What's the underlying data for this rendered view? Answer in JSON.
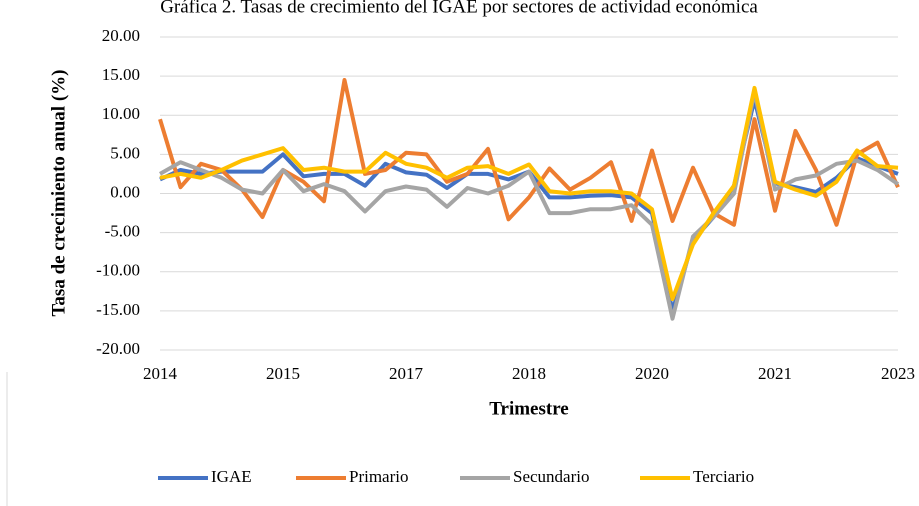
{
  "chart_data": {
    "type": "line",
    "title": "Gráfica 2. Tasas de crecimiento del IGAE por sectores de actividad económica",
    "x_label": "Trimestre",
    "y_label": "Tasa de crecimiento anual (%)",
    "categories": [
      "2014",
      null,
      null,
      null,
      null,
      null,
      "2015",
      null,
      null,
      null,
      null,
      null,
      "2017",
      null,
      null,
      null,
      null,
      null,
      "2018",
      null,
      null,
      null,
      null,
      null,
      "2020",
      null,
      null,
      null,
      null,
      null,
      "2021",
      null,
      null,
      null,
      null,
      null,
      "2023"
    ],
    "ylim": [
      -20,
      20
    ],
    "yticks": [
      {
        "value": -20,
        "label": "-20.00"
      },
      {
        "value": -15,
        "label": "-15.00"
      },
      {
        "value": -10,
        "label": "-10.00"
      },
      {
        "value": -5,
        "label": "-5.00"
      },
      {
        "value": 0,
        "label": "0.00"
      },
      {
        "value": 5,
        "label": "5.00"
      },
      {
        "value": 10,
        "label": "10.00"
      },
      {
        "value": 15,
        "label": "15.00"
      },
      {
        "value": 20,
        "label": "20.00"
      }
    ],
    "grid": true,
    "legend": "bottom",
    "series": [
      {
        "name": "IGAE",
        "color": "#4472c4",
        "values": [
          1.8,
          3.0,
          2.5,
          2.8,
          2.8,
          2.8,
          5.0,
          2.2,
          2.5,
          2.5,
          1.0,
          3.8,
          2.7,
          2.4,
          0.7,
          2.5,
          2.5,
          1.8,
          2.8,
          -0.5,
          -0.5,
          -0.3,
          -0.2,
          -0.5,
          -2.5,
          -15.0,
          -6.0,
          -3.0,
          1.0,
          12.0,
          1.3,
          0.8,
          0.2,
          2.0,
          4.5,
          3.5,
          2.5
        ]
      },
      {
        "name": "Primario",
        "color": "#ed7d31",
        "values": [
          9.5,
          0.8,
          3.8,
          3.0,
          0.5,
          -3.0,
          3.0,
          1.5,
          -1.0,
          14.5,
          2.5,
          3.0,
          5.2,
          5.0,
          1.5,
          2.5,
          5.7,
          -3.3,
          -0.5,
          3.2,
          0.5,
          2.0,
          4.0,
          -3.5,
          5.5,
          -3.5,
          3.3,
          -2.5,
          -4.0,
          9.5,
          -2.2,
          8.0,
          3.0,
          -4.0,
          5.0,
          6.5,
          0.8
        ]
      },
      {
        "name": "Secundario",
        "color": "#a5a5a5",
        "values": [
          2.5,
          4.0,
          3.0,
          2.0,
          0.5,
          0.0,
          3.0,
          0.3,
          1.2,
          0.3,
          -2.3,
          0.3,
          0.9,
          0.5,
          -1.7,
          0.7,
          0.0,
          1.0,
          2.8,
          -2.5,
          -2.5,
          -2.0,
          -2.0,
          -1.5,
          -4.0,
          -16.0,
          -5.5,
          -3.0,
          0.0,
          13.0,
          0.5,
          1.8,
          2.3,
          3.8,
          4.2,
          3.0,
          1.2
        ]
      },
      {
        "name": "Terciario",
        "color": "#ffc000",
        "values": [
          2.0,
          2.5,
          2.0,
          3.0,
          4.2,
          5.0,
          5.8,
          3.0,
          3.3,
          2.8,
          2.8,
          5.2,
          3.8,
          3.3,
          2.0,
          3.3,
          3.5,
          2.5,
          3.7,
          0.3,
          0.0,
          0.3,
          0.3,
          0.0,
          -2.0,
          -13.5,
          -6.5,
          -2.5,
          1.0,
          13.5,
          1.5,
          0.5,
          -0.3,
          1.5,
          5.5,
          3.5,
          3.3
        ]
      }
    ]
  }
}
